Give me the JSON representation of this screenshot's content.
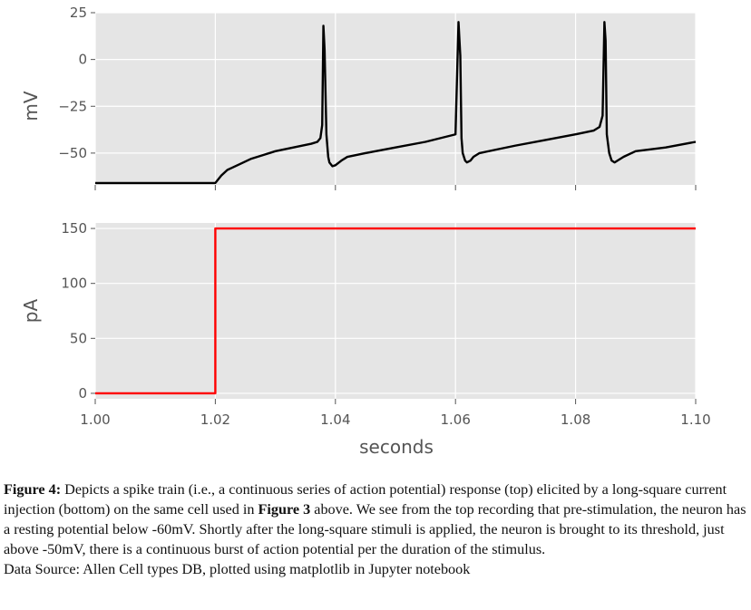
{
  "chart_data": [
    {
      "type": "line",
      "panel": "top",
      "ylabel": "mV",
      "xlim": [
        1.0,
        1.1
      ],
      "ylim": [
        -67,
        25
      ],
      "yticks": [
        25,
        0,
        -25,
        -50
      ],
      "ytick_labels": [
        "25",
        "0",
        "−25",
        "−50"
      ],
      "xticks": [
        1.0,
        1.02,
        1.04,
        1.06,
        1.08,
        1.1
      ],
      "grid": true,
      "series": [
        {
          "color": "#000000",
          "x": [
            1.0,
            1.01,
            1.02,
            1.0205,
            1.021,
            1.022,
            1.024,
            1.026,
            1.028,
            1.03,
            1.033,
            1.036,
            1.037,
            1.0375,
            1.0378,
            1.038,
            1.0382,
            1.0385,
            1.0388,
            1.039,
            1.0395,
            1.04,
            1.041,
            1.042,
            1.045,
            1.05,
            1.055,
            1.06,
            1.0605,
            1.0608,
            1.061,
            1.0612,
            1.0616,
            1.0619,
            1.0625,
            1.063,
            1.064,
            1.067,
            1.07,
            1.075,
            1.08,
            1.083,
            1.084,
            1.0845,
            1.0848,
            1.085,
            1.0852,
            1.0856,
            1.086,
            1.0865,
            1.087,
            1.088,
            1.09,
            1.095,
            1.1
          ],
          "y": [
            -66,
            -66,
            -66,
            -64,
            -62,
            -59,
            -56,
            -53,
            -51,
            -49,
            -47,
            -45,
            -44,
            -42,
            -35,
            18,
            5,
            -40,
            -52,
            -55,
            -57,
            -56.5,
            -54,
            -52,
            -50,
            -47,
            -44,
            -40,
            20,
            2,
            -42,
            -50,
            -54,
            -55,
            -54,
            -52,
            -50,
            -48,
            -46,
            -43,
            -40,
            -38,
            -36,
            -30,
            20,
            10,
            -40,
            -50,
            -54,
            -55,
            -54,
            -52,
            -49,
            -47,
            -44
          ]
        }
      ]
    },
    {
      "type": "line",
      "panel": "bottom",
      "ylabel": "pA",
      "xlabel": "seconds",
      "xlim": [
        1.0,
        1.1
      ],
      "ylim": [
        -5,
        155
      ],
      "yticks": [
        0,
        50,
        100,
        150
      ],
      "ytick_labels": [
        "0",
        "50",
        "100",
        "150"
      ],
      "xticks": [
        1.0,
        1.02,
        1.04,
        1.06,
        1.08,
        1.1
      ],
      "xtick_labels": [
        "1.00",
        "1.02",
        "1.04",
        "1.06",
        "1.08",
        "1.10"
      ],
      "grid": true,
      "series": [
        {
          "color": "#ff0000",
          "x": [
            1.0,
            1.02,
            1.02,
            1.1
          ],
          "y": [
            0,
            0,
            150,
            150
          ]
        }
      ]
    }
  ],
  "caption": {
    "label": "Figure 4:",
    "part1": " Depicts a spike train (i.e., a continuous series of action potential) response (top) elicited by a long-square current injection (bottom) on the same cell used in ",
    "ref": "Figure 3",
    "part2": " above. We see from the top recording that pre-stimulation, the neuron has a resting potential below -60mV. Shortly after the long-square stimuli is applied, the neuron is brought to its threshold, just above -50mV, there is a continuous burst of action potential per the duration of the stimulus.",
    "source": "Data Source: Allen Cell types DB, plotted using matplotlib in Jupyter notebook"
  },
  "colors": {
    "panel_bg": "#e5e5e5",
    "grid": "#ffffff",
    "tick_text": "#555555"
  }
}
